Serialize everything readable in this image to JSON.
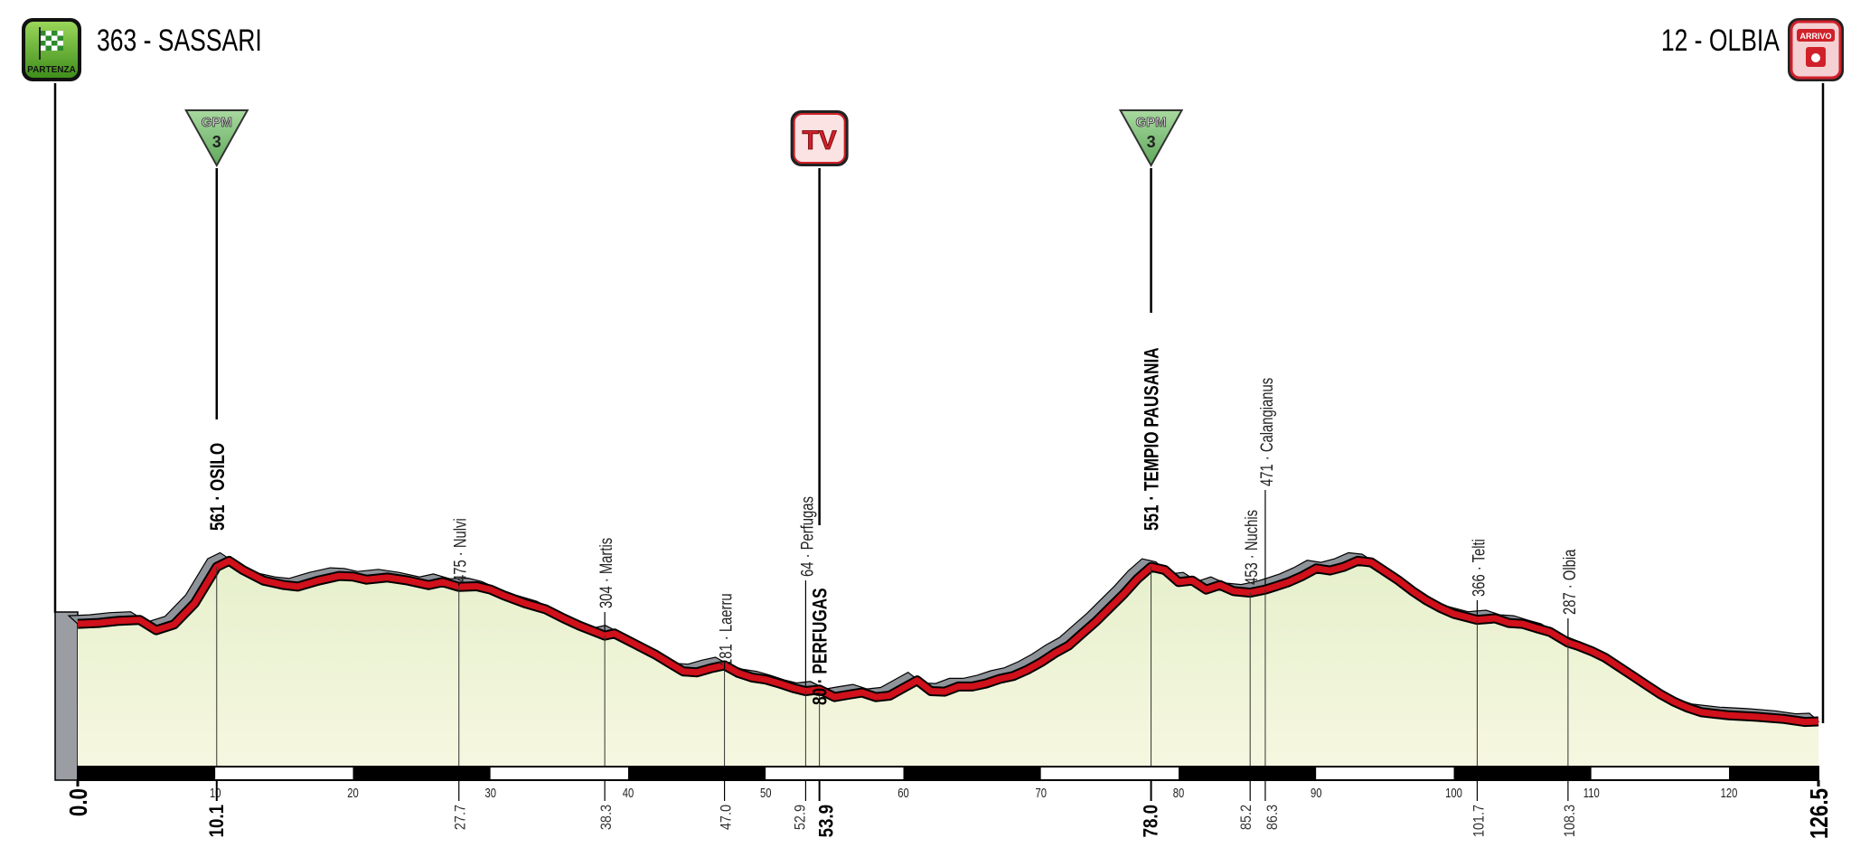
{
  "header": {
    "start_label": "363 - SASSARI",
    "finish_label": "12 - OLBIA",
    "start_icon": {
      "name": "partenza-flag-icon",
      "text": "PARTENZA",
      "color": "#5fb02a"
    },
    "finish_icon": {
      "name": "arrivo-icon",
      "text": "ARRIVO",
      "color": "#e02030"
    }
  },
  "badges": [
    {
      "km": 10.1,
      "type": "gpm",
      "text": "GPM",
      "category": "3"
    },
    {
      "km": 53.9,
      "type": "tv",
      "text": "TV"
    },
    {
      "km": 78.0,
      "type": "gpm",
      "text": "GPM",
      "category": "3"
    }
  ],
  "chart_data": {
    "type": "area",
    "title": "",
    "xlabel": "",
    "ylabel": "",
    "x_unit": "km",
    "y_unit": "m",
    "xlim": [
      0,
      126.5
    ],
    "x_ticks": [
      10,
      20,
      30,
      40,
      50,
      60,
      70,
      80,
      90,
      100,
      110,
      120
    ],
    "colors": {
      "profile_line": "#d0101a",
      "shadow": "#8e9399",
      "fill": "#eef3d2",
      "outline": "#000000"
    },
    "profile": [
      [
        0,
        352
      ],
      [
        1.5,
        355
      ],
      [
        3,
        362
      ],
      [
        4.5,
        365
      ],
      [
        5.7,
        331
      ],
      [
        7,
        350
      ],
      [
        8.5,
        420
      ],
      [
        10.1,
        540
      ],
      [
        11,
        560
      ],
      [
        12,
        530
      ],
      [
        13.5,
        495
      ],
      [
        15,
        480
      ],
      [
        16,
        475
      ],
      [
        17.5,
        495
      ],
      [
        19,
        510
      ],
      [
        20,
        508
      ],
      [
        21,
        498
      ],
      [
        22.5,
        505
      ],
      [
        24,
        495
      ],
      [
        25.5,
        480
      ],
      [
        26.5,
        490
      ],
      [
        27.7,
        474
      ],
      [
        29,
        476
      ],
      [
        30,
        465
      ],
      [
        31,
        445
      ],
      [
        32.5,
        420
      ],
      [
        34,
        400
      ],
      [
        35.3,
        370
      ],
      [
        36.5,
        345
      ],
      [
        38.3,
        313
      ],
      [
        39,
        320
      ],
      [
        40.5,
        285
      ],
      [
        42,
        250
      ],
      [
        43,
        222
      ],
      [
        44,
        195
      ],
      [
        45,
        192
      ],
      [
        46,
        205
      ],
      [
        47,
        215
      ],
      [
        48,
        190
      ],
      [
        49,
        175
      ],
      [
        50,
        168
      ],
      [
        51,
        155
      ],
      [
        52,
        140
      ],
      [
        52.9,
        130
      ],
      [
        53.9,
        135
      ],
      [
        55,
        110
      ],
      [
        56,
        118
      ],
      [
        57,
        125
      ],
      [
        58,
        110
      ],
      [
        59,
        115
      ],
      [
        60,
        140
      ],
      [
        61,
        165
      ],
      [
        62,
        130
      ],
      [
        63,
        128
      ],
      [
        64,
        145
      ],
      [
        65,
        145
      ],
      [
        66,
        155
      ],
      [
        67,
        170
      ],
      [
        68,
        180
      ],
      [
        69,
        200
      ],
      [
        70,
        225
      ],
      [
        71,
        255
      ],
      [
        72,
        280
      ],
      [
        73,
        320
      ],
      [
        74,
        360
      ],
      [
        75,
        405
      ],
      [
        76,
        450
      ],
      [
        77,
        500
      ],
      [
        78,
        540
      ],
      [
        79,
        530
      ],
      [
        80,
        490
      ],
      [
        81,
        495
      ],
      [
        82,
        465
      ],
      [
        83,
        480
      ],
      [
        84,
        460
      ],
      [
        85.2,
        455
      ],
      [
        86.3,
        465
      ],
      [
        87,
        475
      ],
      [
        88,
        490
      ],
      [
        89,
        510
      ],
      [
        90,
        535
      ],
      [
        91,
        528
      ],
      [
        92,
        540
      ],
      [
        93,
        560
      ],
      [
        94,
        555
      ],
      [
        95,
        525
      ],
      [
        96,
        495
      ],
      [
        97,
        460
      ],
      [
        98,
        430
      ],
      [
        99,
        405
      ],
      [
        100,
        385
      ],
      [
        101.7,
        365
      ],
      [
        103,
        370
      ],
      [
        104,
        355
      ],
      [
        105,
        352
      ],
      [
        106,
        338
      ],
      [
        107,
        325
      ],
      [
        108.3,
        290
      ],
      [
        109,
        280
      ],
      [
        110,
        262
      ],
      [
        111,
        240
      ],
      [
        112,
        210
      ],
      [
        113,
        180
      ],
      [
        114,
        150
      ],
      [
        115,
        120
      ],
      [
        116,
        95
      ],
      [
        117,
        75
      ],
      [
        118,
        60
      ],
      [
        119,
        55
      ],
      [
        120,
        50
      ],
      [
        122,
        45
      ],
      [
        124,
        38
      ],
      [
        125.5,
        28
      ],
      [
        126.5,
        30
      ]
    ],
    "markers": [
      {
        "km": 10.1,
        "km_label": "10.1",
        "label": "561 · OSILO",
        "bold": true
      },
      {
        "km": 27.7,
        "km_label": "27.7",
        "label": "475 · Nulvi",
        "bold": false
      },
      {
        "km": 38.3,
        "km_label": "38.3",
        "label": "304 · Martis",
        "bold": false
      },
      {
        "km": 47.0,
        "km_label": "47.0",
        "label": "181 · Laerru",
        "bold": false
      },
      {
        "km": 52.9,
        "km_label": "52.9",
        "label": "64 · Perfugas",
        "bold": false
      },
      {
        "km": 53.9,
        "km_label": "53.9",
        "label": "80 · PERFUGAS",
        "bold": true
      },
      {
        "km": 78.0,
        "km_label": "78.0",
        "label": "551 · TEMPIO PAUSANIA",
        "bold": true
      },
      {
        "km": 85.2,
        "km_label": "85.2",
        "label": "453 · Nuchis",
        "bold": false
      },
      {
        "km": 86.3,
        "km_label": "86.3",
        "label": "471 · Calangianus",
        "bold": false
      },
      {
        "km": 101.7,
        "km_label": "101.7",
        "label": "366 · Telti",
        "bold": false
      },
      {
        "km": 108.3,
        "km_label": "108.3",
        "label": "287 · Olbia",
        "bold": false
      }
    ],
    "start_km_label": "0.0",
    "end_km_label": "126.5"
  }
}
